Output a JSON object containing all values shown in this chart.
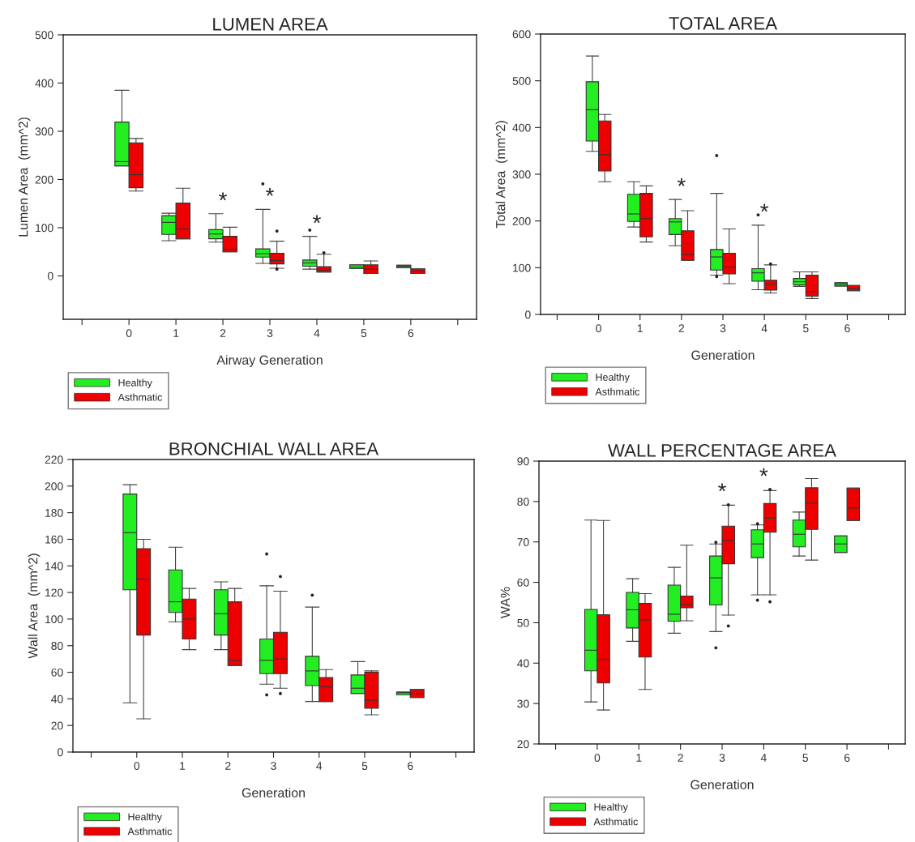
{
  "chart_data": [
    {
      "type": "box",
      "title": "LUMEN AREA",
      "xlabel": "Airway Generation",
      "ylabel": "Lumen Area  (mm^2)",
      "categories": [
        "0",
        "1",
        "2",
        "3",
        "4",
        "5",
        "6"
      ],
      "ylim": [
        -90,
        500
      ],
      "yticks": [
        0,
        100,
        200,
        300,
        400,
        500
      ],
      "legend": "bottom left",
      "series": [
        {
          "name": "Healthy",
          "color": "#22ee22",
          "boxes": [
            {
              "low": 228,
              "q1": 228,
              "median": 237,
              "q3": 319,
              "high": 385
            },
            {
              "low": 73,
              "q1": 86,
              "median": 111,
              "q3": 125,
              "high": 130
            },
            {
              "low": 70,
              "q1": 77,
              "median": 87,
              "q3": 96,
              "high": 129
            },
            {
              "low": 26,
              "q1": 39,
              "median": 46,
              "q3": 56,
              "high": 138,
              "outliers": [
                191
              ]
            },
            {
              "low": 14,
              "q1": 20,
              "median": 27,
              "q3": 33,
              "high": 82,
              "outliers": [
                95
              ]
            },
            {
              "low": 15,
              "q1": 15,
              "median": 18,
              "q3": 23,
              "high": 23
            },
            {
              "low": 17,
              "q1": 17,
              "median": 20,
              "q3": 22,
              "high": 22
            }
          ]
        },
        {
          "name": "Asthmatic",
          "color": "#ee0000",
          "boxes": [
            {
              "low": 176,
              "q1": 183,
              "median": 210,
              "q3": 276,
              "high": 285
            },
            {
              "low": 77,
              "q1": 77,
              "median": 97,
              "q3": 151,
              "high": 182
            },
            {
              "low": 50,
              "q1": 50,
              "median": 55,
              "q3": 82,
              "high": 101
            },
            {
              "low": 16,
              "q1": 25,
              "median": 32,
              "q3": 47,
              "high": 72,
              "outliers": [
                93,
                14
              ]
            },
            {
              "low": 8,
              "q1": 8,
              "median": 12,
              "q3": 19,
              "high": 45,
              "outliers": [
                48
              ]
            },
            {
              "low": 5,
              "q1": 5,
              "median": 14,
              "q3": 23,
              "high": 31
            },
            {
              "low": 5,
              "q1": 5,
              "median": 10,
              "q3": 15,
              "high": 15
            }
          ]
        }
      ],
      "annotations": [
        {
          "text": "*",
          "x": "2",
          "y": 129
        },
        {
          "text": "*",
          "x": "3",
          "y": 138
        },
        {
          "text": "*",
          "x": "4",
          "y": 82
        }
      ]
    },
    {
      "type": "box",
      "title": "TOTAL AREA",
      "xlabel": "Generation",
      "ylabel": "Total Area  (mm^2)",
      "categories": [
        "0",
        "1",
        "2",
        "3",
        "4",
        "5",
        "6"
      ],
      "ylim": [
        0,
        600
      ],
      "yticks": [
        0,
        100,
        200,
        300,
        400,
        500,
        600
      ],
      "legend": "bottom left",
      "series": [
        {
          "name": "Healthy",
          "color": "#22ee22",
          "boxes": [
            {
              "low": 349,
              "q1": 371,
              "median": 438,
              "q3": 498,
              "high": 553
            },
            {
              "low": 187,
              "q1": 199,
              "median": 215,
              "q3": 257,
              "high": 284
            },
            {
              "low": 147,
              "q1": 171,
              "median": 198,
              "q3": 205,
              "high": 246
            },
            {
              "low": 84,
              "q1": 95,
              "median": 123,
              "q3": 139,
              "high": 259,
              "outliers": [
                340,
                81
              ]
            },
            {
              "low": 53,
              "q1": 71,
              "median": 89,
              "q3": 98,
              "high": 191,
              "outliers": [
                213
              ]
            },
            {
              "low": 60,
              "q1": 63,
              "median": 70,
              "q3": 77,
              "high": 91
            },
            {
              "low": 61,
              "q1": 61,
              "median": 65,
              "q3": 68,
              "high": 68
            }
          ]
        },
        {
          "name": "Asthmatic",
          "color": "#ee0000",
          "boxes": [
            {
              "low": 284,
              "q1": 307,
              "median": 342,
              "q3": 414,
              "high": 428
            },
            {
              "low": 155,
              "q1": 166,
              "median": 205,
              "q3": 259,
              "high": 275
            },
            {
              "low": 116,
              "q1": 116,
              "median": 128,
              "q3": 179,
              "high": 222
            },
            {
              "low": 66,
              "q1": 87,
              "median": 101,
              "q3": 131,
              "high": 183
            },
            {
              "low": 46,
              "q1": 52,
              "median": 65,
              "q3": 73,
              "high": 106,
              "outliers": [
                108
              ]
            },
            {
              "low": 34,
              "q1": 39,
              "median": 49,
              "q3": 84,
              "high": 91
            },
            {
              "low": 51,
              "q1": 51,
              "median": 55,
              "q3": 62,
              "high": 62
            }
          ]
        }
      ],
      "annotations": [
        {
          "text": "*",
          "x": "2",
          "y": 246
        },
        {
          "text": "*",
          "x": "4",
          "y": 191
        }
      ]
    },
    {
      "type": "box",
      "title": "BRONCHIAL WALL AREA",
      "xlabel": "Generation",
      "ylabel": "Wall Area  (mm^2)",
      "categories": [
        "0",
        "1",
        "2",
        "3",
        "4",
        "5",
        "6"
      ],
      "ylim": [
        0,
        220
      ],
      "yticks": [
        0,
        20,
        40,
        60,
        80,
        100,
        120,
        140,
        160,
        180,
        200,
        220
      ],
      "legend": "bottom left",
      "series": [
        {
          "name": "Healthy",
          "color": "#22ee22",
          "boxes": [
            {
              "low": 37,
              "q1": 122,
              "median": 165,
              "q3": 194,
              "high": 201
            },
            {
              "low": 98,
              "q1": 105,
              "median": 113,
              "q3": 137,
              "high": 154
            },
            {
              "low": 77,
              "q1": 88,
              "median": 104,
              "q3": 122,
              "high": 128
            },
            {
              "low": 51,
              "q1": 59,
              "median": 69,
              "q3": 85,
              "high": 125,
              "outliers": [
                149,
                43
              ]
            },
            {
              "low": 38,
              "q1": 50,
              "median": 61,
              "q3": 72,
              "high": 109,
              "outliers": [
                118
              ]
            },
            {
              "low": 44,
              "q1": 44,
              "median": 48,
              "q3": 58,
              "high": 68
            },
            {
              "low": 43,
              "q1": 43,
              "median": 44.5,
              "q3": 45,
              "high": 45
            }
          ]
        },
        {
          "name": "Asthmatic",
          "color": "#ee0000",
          "boxes": [
            {
              "low": 25,
              "q1": 88,
              "median": 130,
              "q3": 153,
              "high": 160
            },
            {
              "low": 77,
              "q1": 85,
              "median": 100,
              "q3": 115,
              "high": 123
            },
            {
              "low": 65,
              "q1": 65,
              "median": 69,
              "q3": 113,
              "high": 123
            },
            {
              "low": 48,
              "q1": 59,
              "median": 70,
              "q3": 90,
              "high": 121,
              "outliers": [
                132,
                44
              ]
            },
            {
              "low": 38,
              "q1": 38,
              "median": 49,
              "q3": 56,
              "high": 62
            },
            {
              "low": 28,
              "q1": 33,
              "median": 39,
              "q3": 60,
              "high": 61
            },
            {
              "low": 41,
              "q1": 41,
              "median": 44,
              "q3": 47,
              "high": 47
            }
          ]
        }
      ]
    },
    {
      "type": "box",
      "title": "WALL PERCENTAGE AREA",
      "xlabel": "Generation",
      "ylabel": "WA%",
      "categories": [
        "0",
        "1",
        "2",
        "3",
        "4",
        "5",
        "6"
      ],
      "ylim": [
        20,
        90
      ],
      "yticks": [
        20,
        30,
        40,
        50,
        60,
        70,
        80,
        90
      ],
      "legend": "bottom left",
      "series": [
        {
          "name": "Healthy",
          "color": "#22ee22",
          "boxes": [
            {
              "low": 30.4,
              "q1": 38.1,
              "median": 43.2,
              "q3": 53.3,
              "high": 75.4
            },
            {
              "low": 45.4,
              "q1": 48.7,
              "median": 53.2,
              "q3": 57.5,
              "high": 60.9
            },
            {
              "low": 47.4,
              "q1": 50.4,
              "median": 52.1,
              "q3": 59.3,
              "high": 63.7
            },
            {
              "low": 47.8,
              "q1": 54.4,
              "median": 61.1,
              "q3": 66.5,
              "high": 69.5,
              "outliers": [
                69.9,
                43.8
              ]
            },
            {
              "low": 56.9,
              "q1": 66.1,
              "median": 69.5,
              "q3": 73.0,
              "high": 74.2,
              "outliers": [
                74.5,
                55.6
              ]
            },
            {
              "low": 66.5,
              "q1": 68.8,
              "median": 71.9,
              "q3": 75.4,
              "high": 77.4
            },
            {
              "low": 67.4,
              "q1": 67.4,
              "median": 69.5,
              "q3": 71.5,
              "high": 71.5
            }
          ]
        },
        {
          "name": "Asthmatic",
          "color": "#ee0000",
          "boxes": [
            {
              "low": 28.4,
              "q1": 35.1,
              "median": 40.9,
              "q3": 52.0,
              "high": 75.3
            },
            {
              "low": 33.5,
              "q1": 41.5,
              "median": 50.7,
              "q3": 54.8,
              "high": 57.2
            },
            {
              "low": 50.5,
              "q1": 53.7,
              "median": 54.5,
              "q3": 56.6,
              "high": 69.2
            },
            {
              "low": 51.9,
              "q1": 64.6,
              "median": 70.3,
              "q3": 73.9,
              "high": 79.1,
              "outliers": [
                79.2,
                49.2
              ]
            },
            {
              "low": 56.9,
              "q1": 72.4,
              "median": 75.9,
              "q3": 79.5,
              "high": 82.7,
              "outliers": [
                83.0,
                55.2
              ]
            },
            {
              "low": 65.5,
              "q1": 73.1,
              "median": 79.6,
              "q3": 83.4,
              "high": 85.7
            },
            {
              "low": 75.3,
              "q1": 75.3,
              "median": 78.4,
              "q3": 83.3,
              "high": 83.3
            }
          ]
        }
      ],
      "annotations": [
        {
          "text": "*",
          "x": "3",
          "y": 79.2
        },
        {
          "text": "*",
          "x": "4",
          "y": 83.0
        }
      ]
    }
  ]
}
